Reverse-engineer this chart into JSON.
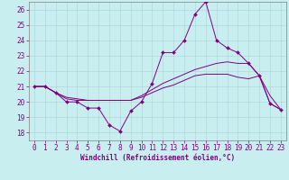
{
  "xlabel": "Windchill (Refroidissement éolien,°C)",
  "xlim": [
    -0.5,
    23.5
  ],
  "ylim": [
    17.5,
    26.5
  ],
  "yticks": [
    18,
    19,
    20,
    21,
    22,
    23,
    24,
    25,
    26
  ],
  "xticks": [
    0,
    1,
    2,
    3,
    4,
    5,
    6,
    7,
    8,
    9,
    10,
    11,
    12,
    13,
    14,
    15,
    16,
    17,
    18,
    19,
    20,
    21,
    22,
    23
  ],
  "background_color": "#c8eef0",
  "grid_color": "#b0d8dc",
  "line_color": "#800080",
  "line1_y": [
    21.0,
    21.0,
    20.6,
    20.0,
    20.0,
    19.6,
    19.6,
    18.5,
    18.1,
    19.4,
    20.0,
    21.2,
    23.2,
    23.2,
    24.0,
    25.7,
    26.5,
    24.0,
    23.5,
    23.2,
    22.5,
    21.7,
    19.9,
    19.5
  ],
  "line2_y": [
    21.0,
    21.0,
    20.6,
    20.3,
    20.2,
    20.1,
    20.1,
    20.1,
    20.1,
    20.1,
    20.4,
    20.8,
    21.2,
    21.5,
    21.8,
    22.1,
    22.3,
    22.5,
    22.6,
    22.5,
    22.5,
    21.7,
    20.4,
    19.5
  ],
  "line3_y": [
    21.0,
    21.0,
    20.6,
    20.2,
    20.1,
    20.1,
    20.1,
    20.1,
    20.1,
    20.1,
    20.3,
    20.6,
    20.9,
    21.1,
    21.4,
    21.7,
    21.8,
    21.8,
    21.8,
    21.6,
    21.5,
    21.7,
    19.9,
    19.5
  ]
}
